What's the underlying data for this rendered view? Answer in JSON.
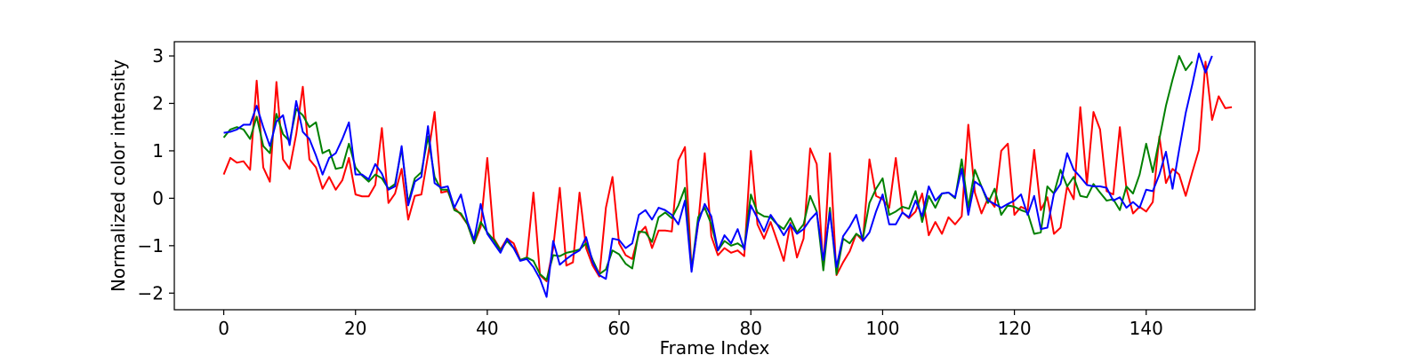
{
  "chart_data": {
    "type": "line",
    "title": "",
    "xlabel": "Frame Index",
    "ylabel": "Normalized color intensity",
    "xlim": [
      -7.5,
      156.5
    ],
    "ylim": [
      -2.35,
      3.3
    ],
    "xticks": [
      0,
      20,
      40,
      60,
      80,
      100,
      120,
      140
    ],
    "yticks": [
      -2,
      -1,
      0,
      1,
      2,
      3
    ],
    "grid": false,
    "legend": "none",
    "series": [
      {
        "color": "#ff0000",
        "values": [
          0.5,
          0.85,
          0.75,
          0.78,
          0.6,
          2.48,
          0.65,
          0.35,
          2.45,
          0.82,
          0.62,
          1.35,
          2.35,
          0.82,
          0.65,
          0.2,
          0.45,
          0.18,
          0.38,
          0.85,
          0.08,
          0.04,
          0.04,
          0.28,
          1.48,
          -0.1,
          0.1,
          0.62,
          -0.45,
          0.05,
          0.08,
          0.9,
          1.82,
          0.12,
          0.15,
          -0.2,
          -0.35,
          -0.55,
          -0.95,
          -0.6,
          0.85,
          -0.85,
          -1.08,
          -0.85,
          -0.95,
          -1.3,
          -1.25,
          0.12,
          -1.62,
          -1.75,
          -1.05,
          0.22,
          -1.42,
          -1.35,
          0.12,
          -1.05,
          -1.42,
          -1.65,
          -0.2,
          0.45,
          -0.95,
          -1.2,
          -1.28,
          -0.75,
          -0.6,
          -1.05,
          -0.68,
          -0.68,
          -0.7,
          0.8,
          1.08,
          -1.5,
          -0.55,
          0.95,
          -0.8,
          -1.2,
          -1.05,
          -1.15,
          -1.1,
          -1.22,
          1.0,
          -0.55,
          -0.85,
          -0.5,
          -0.9,
          -1.32,
          -0.52,
          -1.25,
          -0.85,
          1.05,
          0.72,
          -1.48,
          0.95,
          -1.62,
          -1.35,
          -1.12,
          -0.75,
          -0.9,
          0.82,
          0.05,
          -0.02,
          -0.2,
          0.85,
          -0.3,
          -0.42,
          -0.28,
          0.1,
          -0.78,
          -0.5,
          -0.75,
          -0.4,
          -0.55,
          -0.38,
          1.55,
          0.12,
          -0.32,
          0.0,
          -0.18,
          1.0,
          1.15,
          -0.35,
          -0.18,
          -0.25,
          1.02,
          -0.25,
          0.02,
          -0.75,
          -0.62,
          0.25,
          -0.02,
          1.92,
          0.3,
          1.82,
          1.45,
          0.15,
          0.08,
          1.5,
          0.2,
          -0.32,
          -0.18,
          -0.28,
          -0.08,
          1.3,
          0.32,
          0.62,
          0.5,
          0.05,
          0.55,
          1.02,
          2.88,
          1.65,
          2.15,
          1.9,
          1.92
        ]
      },
      {
        "color": "#008000",
        "values": [
          1.28,
          1.45,
          1.5,
          1.45,
          1.25,
          1.72,
          1.1,
          0.95,
          1.78,
          1.35,
          1.2,
          1.88,
          1.75,
          1.5,
          1.6,
          0.95,
          1.02,
          0.62,
          0.65,
          1.15,
          0.65,
          0.48,
          0.35,
          0.5,
          0.42,
          0.2,
          0.3,
          1.05,
          -0.1,
          0.42,
          0.55,
          1.3,
          0.45,
          0.18,
          0.18,
          -0.25,
          -0.32,
          -0.55,
          -0.95,
          -0.5,
          -0.72,
          -0.88,
          -1.1,
          -0.9,
          -1.05,
          -1.3,
          -1.25,
          -1.32,
          -1.6,
          -1.72,
          -1.2,
          -1.22,
          -1.15,
          -1.12,
          -1.08,
          -0.95,
          -1.3,
          -1.6,
          -1.5,
          -1.1,
          -1.18,
          -1.38,
          -1.48,
          -0.7,
          -0.72,
          -0.92,
          -0.4,
          -0.3,
          -0.42,
          -0.15,
          0.22,
          -1.52,
          -0.4,
          -0.2,
          -0.55,
          -1.1,
          -0.9,
          -1.0,
          -0.95,
          -1.05,
          0.08,
          -0.3,
          -0.38,
          -0.4,
          -0.55,
          -0.65,
          -0.42,
          -0.72,
          -0.55,
          0.05,
          -0.28,
          -1.52,
          -0.2,
          -1.6,
          -0.85,
          -0.95,
          -0.75,
          -0.85,
          -0.1,
          0.2,
          0.42,
          -0.35,
          -0.28,
          -0.18,
          -0.22,
          0.15,
          -0.5,
          0.05,
          -0.2,
          0.1,
          0.12,
          0.0,
          0.82,
          -0.2,
          0.6,
          0.25,
          -0.1,
          0.2,
          -0.35,
          -0.15,
          -0.18,
          -0.25,
          -0.3,
          -0.75,
          -0.72,
          0.25,
          0.1,
          0.6,
          0.25,
          0.45,
          0.05,
          0.02,
          0.3,
          0.12,
          -0.05,
          -0.02,
          -0.25,
          0.25,
          0.1,
          0.5,
          1.15,
          0.55,
          1.25,
          1.95,
          2.5,
          3.0,
          2.7,
          2.88
        ]
      },
      {
        "color": "#0000ff",
        "values": [
          1.38,
          1.4,
          1.45,
          1.55,
          1.55,
          1.95,
          1.5,
          1.1,
          1.62,
          1.75,
          1.12,
          2.05,
          1.4,
          1.25,
          0.9,
          0.5,
          0.85,
          0.95,
          1.25,
          1.6,
          0.5,
          0.5,
          0.4,
          0.72,
          0.52,
          0.18,
          0.25,
          1.1,
          -0.15,
          0.35,
          0.45,
          1.52,
          0.32,
          0.22,
          0.25,
          -0.2,
          0.08,
          -0.5,
          -0.88,
          -0.12,
          -0.75,
          -0.95,
          -1.15,
          -0.85,
          -1.05,
          -1.32,
          -1.28,
          -1.45,
          -1.7,
          -2.08,
          -0.9,
          -1.4,
          -1.28,
          -1.18,
          -1.1,
          -0.82,
          -1.35,
          -1.62,
          -1.7,
          -0.85,
          -0.88,
          -1.05,
          -0.95,
          -0.35,
          -0.25,
          -0.45,
          -0.2,
          -0.25,
          -0.35,
          -0.55,
          -0.05,
          -1.55,
          -0.52,
          -0.12,
          -0.38,
          -1.1,
          -0.78,
          -0.95,
          -0.65,
          -1.08,
          -0.15,
          -0.42,
          -0.7,
          -0.35,
          -0.55,
          -0.78,
          -0.55,
          -0.75,
          -0.65,
          -0.45,
          -0.3,
          -1.3,
          -0.3,
          -1.45,
          -0.8,
          -0.6,
          -0.35,
          -0.9,
          -0.72,
          -0.28,
          0.08,
          -0.55,
          -0.55,
          -0.3,
          -0.4,
          -0.05,
          -0.38,
          0.25,
          -0.05,
          0.1,
          0.12,
          0.02,
          0.62,
          -0.35,
          0.35,
          0.25,
          -0.05,
          -0.12,
          -0.2,
          -0.12,
          -0.05,
          0.08,
          -0.35,
          0.05,
          -0.65,
          -0.62,
          0.1,
          0.3,
          0.95,
          0.6,
          0.45,
          0.28,
          0.25,
          0.25,
          0.22,
          -0.05,
          0.02,
          -0.2,
          -0.08,
          -0.2,
          0.18,
          0.15,
          0.5,
          0.98,
          0.2,
          1.02,
          1.8,
          2.4,
          3.05,
          2.65,
          3.0
        ]
      }
    ]
  }
}
